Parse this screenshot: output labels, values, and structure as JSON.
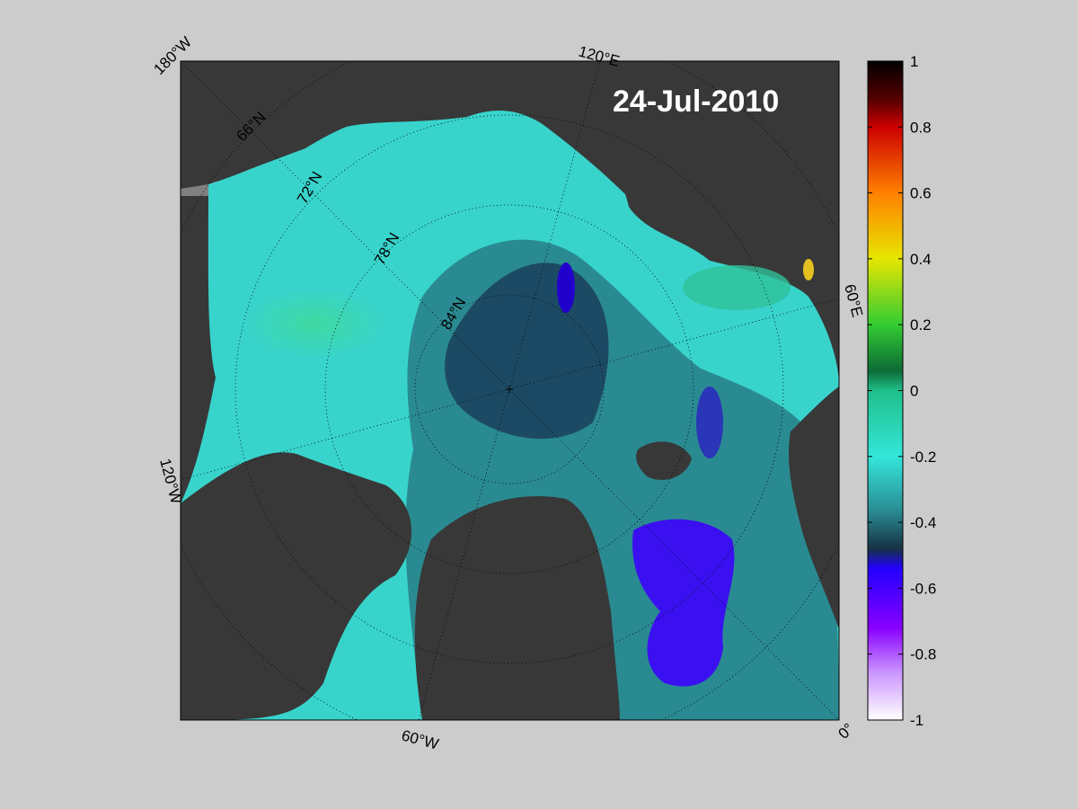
{
  "date_label": "24-Jul-2010",
  "longitude_labels": [
    "180°W",
    "120°E",
    "60°E",
    "0°",
    "60°W",
    "120°W"
  ],
  "latitude_labels": [
    "66°N",
    "72°N",
    "78°N",
    "84°N"
  ],
  "colorbar": {
    "min": -1,
    "max": 1,
    "tick_labels": [
      "1",
      "0.8",
      "0.6",
      "0.4",
      "0.2",
      "0",
      "-0.2",
      "-0.4",
      "-0.6",
      "-0.8",
      "-1"
    ],
    "colors": [
      "#000000",
      "#cc0000",
      "#ff8000",
      "#e6e600",
      "#33cc33",
      "#1a8a5a",
      "#33e6d9",
      "#2f7d86",
      "#163245",
      "#2200ff",
      "#8800ff",
      "#ffffff"
    ]
  },
  "map_colors": {
    "land": "#383838",
    "missing": "#808080",
    "background": "#cccccc"
  }
}
